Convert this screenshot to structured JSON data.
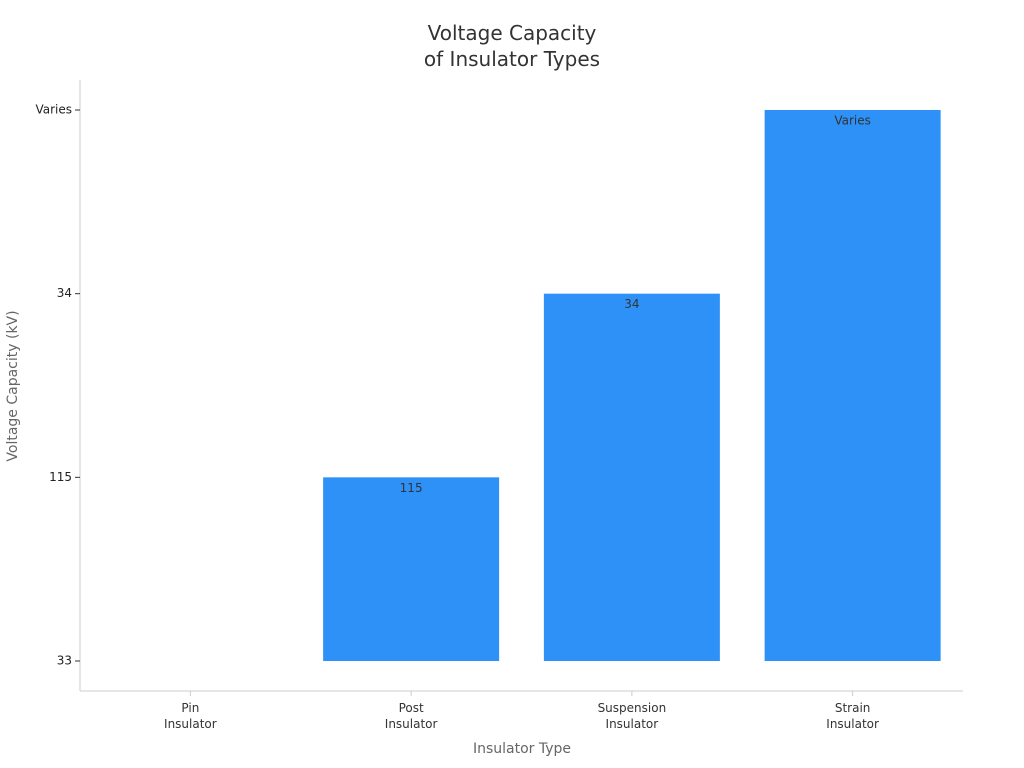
{
  "chart_data": {
    "type": "bar",
    "title": "Voltage Capacity\nof Insulator Types",
    "x_label": "Insulator Type",
    "y_label": "Voltage Capacity (kV)",
    "categories": [
      "Pin\nInsulator",
      "Post\nInsulator",
      "Suspension\nInsulator",
      "Strain\nInsulator"
    ],
    "y_categories": [
      "33",
      "115",
      "34",
      "Varies"
    ],
    "values": [
      "33",
      "115",
      "34",
      "Varies"
    ],
    "value_labels": [
      null,
      "115",
      "34",
      "Varies"
    ],
    "color": "#2e91f7"
  }
}
